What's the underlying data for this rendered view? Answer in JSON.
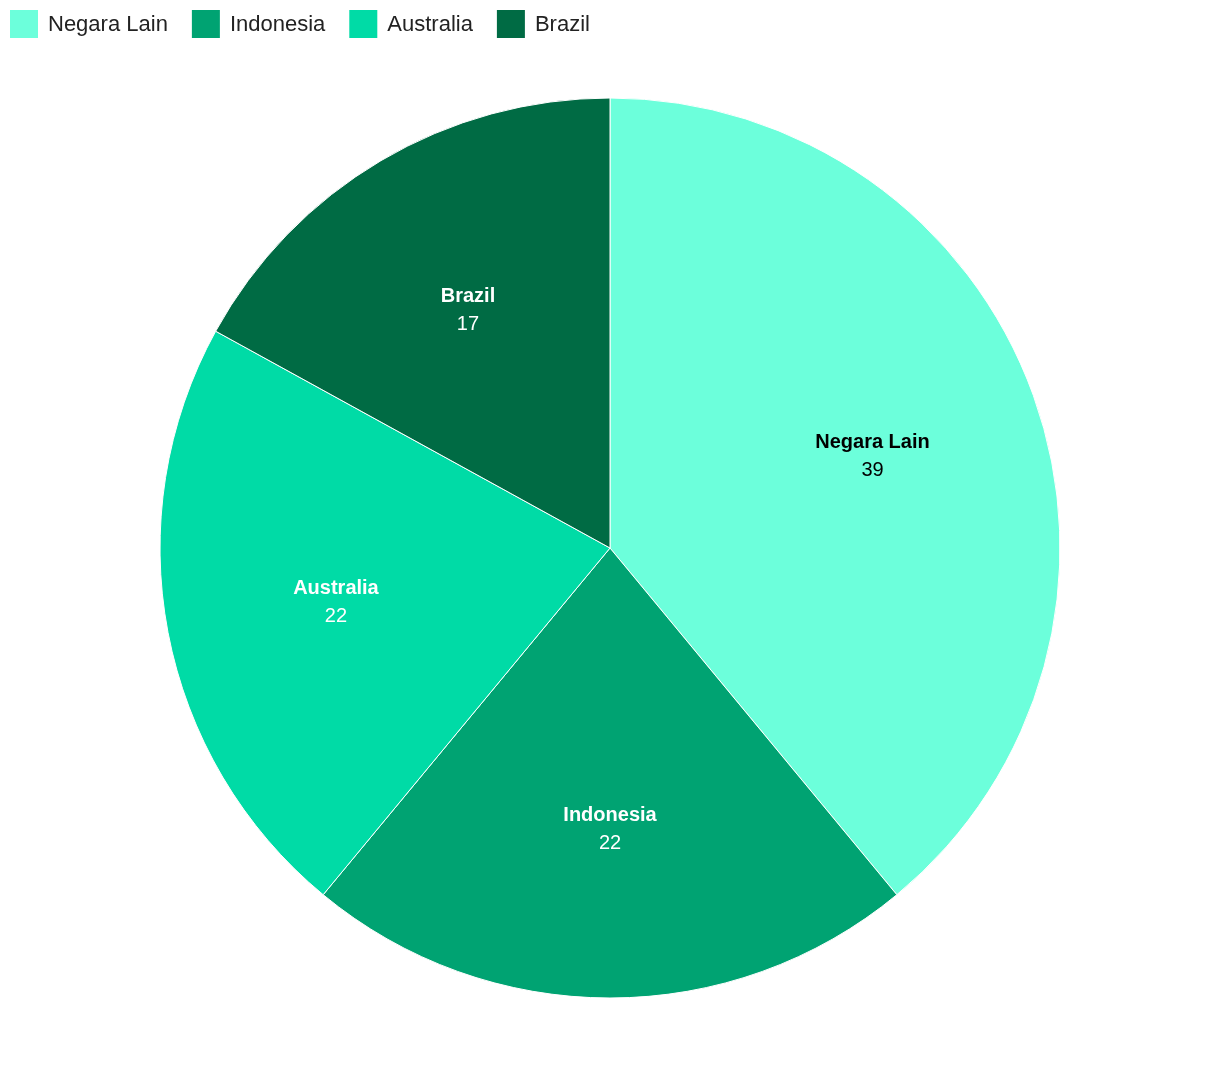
{
  "chart_data": {
    "type": "pie",
    "categories": [
      "Negara Lain",
      "Indonesia",
      "Australia",
      "Brazil"
    ],
    "values": [
      39,
      22,
      22,
      17
    ],
    "colors": [
      "#6cffdb",
      "#00a372",
      "#00dba6",
      "#006b44"
    ],
    "legend": "top left",
    "data_labels": true
  }
}
